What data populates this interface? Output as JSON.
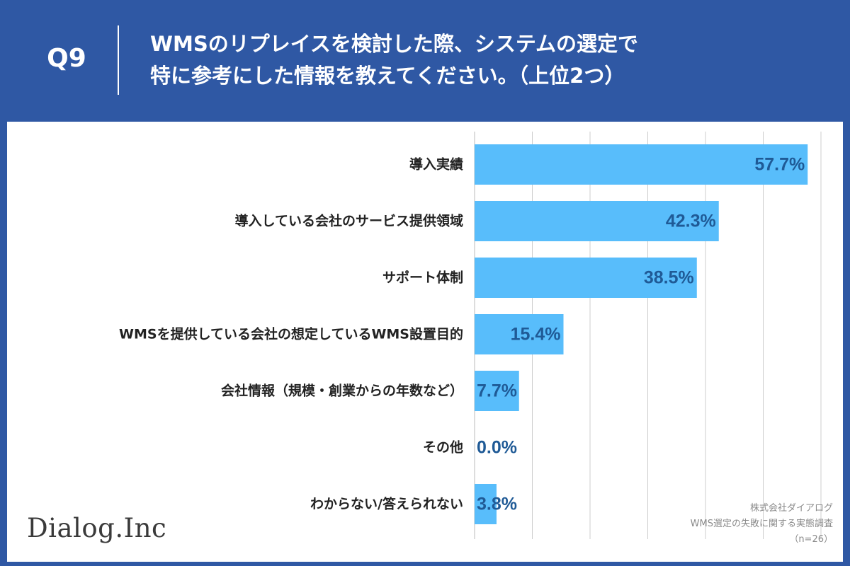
{
  "header": {
    "question_number": "Q9",
    "title_line1": "WMSのリプレイスを検討した際、システムの選定で",
    "title_line2": "特に参考にした情報を教えてください。（上位2つ）"
  },
  "colors": {
    "background": "#2f58a4",
    "bar": "#58bdfb",
    "value_text": "#1f5a96",
    "grid": "#cccccc"
  },
  "chart_data": {
    "type": "bar",
    "orientation": "horizontal",
    "categories": [
      "導入実績",
      "導入している会社のサービス提供領域",
      "サポート体制",
      "WMSを提供している会社の想定しているWMS設置目的",
      "会社情報（規模・創業からの年数など）",
      "その他",
      "わからない/答えられない"
    ],
    "values": [
      57.7,
      42.3,
      38.5,
      15.4,
      7.7,
      0.0,
      3.8
    ],
    "value_labels": [
      "57.7%",
      "42.3%",
      "38.5%",
      "15.4%",
      "7.7%",
      "0.0%",
      "3.8%"
    ],
    "xlim": [
      0,
      60
    ],
    "grid": true,
    "unit": "%"
  },
  "branding": {
    "logo_text": "Dialog.Inc"
  },
  "source": {
    "company": "株式会社ダイアログ",
    "survey": "WMS選定の失敗に関する実態調査",
    "sample": "（n=26）"
  }
}
